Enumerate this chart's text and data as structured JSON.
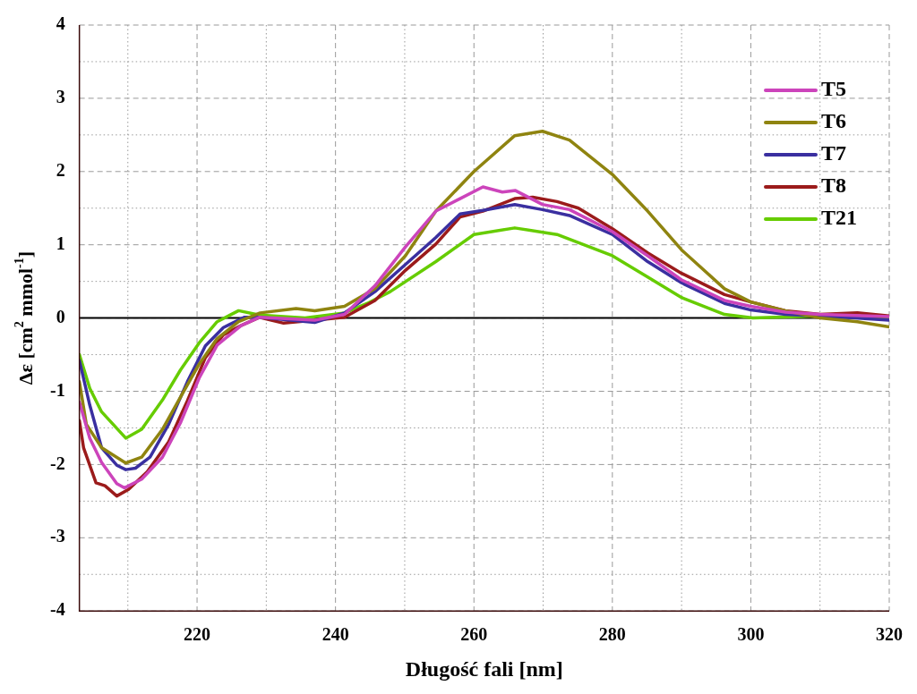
{
  "chart_data": {
    "type": "line",
    "xlabel": "Długość fali [nm]",
    "ylabel": "Δε [cm$^{2}$ mmol$^{-1}$]",
    "xlim": [
      203,
      320
    ],
    "ylim": [
      -4,
      4
    ],
    "xticks": [
      {
        "value": 210,
        "label": null
      },
      220,
      {
        "value": 230,
        "label": null
      },
      240,
      {
        "value": 250,
        "label": null
      },
      260,
      {
        "value": 270,
        "label": null
      },
      280,
      {
        "value": 290,
        "label": null
      },
      300,
      {
        "value": 310,
        "label": null
      },
      320
    ],
    "yticks": [
      -4,
      {
        "value": -3.5,
        "label": null
      },
      -3,
      {
        "value": -2.5,
        "label": null
      },
      -2,
      {
        "value": -1.5,
        "label": null
      },
      -1,
      {
        "value": -0.5,
        "label": null
      },
      0,
      {
        "value": 0.5,
        "label": null
      },
      1,
      {
        "value": 1.5,
        "label": null
      },
      2,
      {
        "value": 2.5,
        "label": null
      },
      3,
      {
        "value": 3.5,
        "label": null
      },
      4
    ],
    "grid": true,
    "legend": "top right",
    "marker": "none",
    "line_style": "solid",
    "ref_lines": [
      {
        "axis": "y",
        "value": 0,
        "color": "#000000"
      }
    ],
    "series": [
      {
        "name": "T5",
        "color": "#cc44bb",
        "x": [
          203,
          204.5,
          206.2,
          208.4,
          209.5,
          212,
          215,
          217.6,
          220.3,
          222.9,
          226.4,
          229,
          237,
          241.3,
          245.7,
          250.1,
          254.5,
          258,
          261.3,
          264.1,
          266,
          269.9,
          273.8,
          280,
          285.1,
          290,
          296.2,
          300,
          305,
          310,
          320
        ],
        "values": [
          -1.15,
          -1.64,
          -1.97,
          -2.26,
          -2.32,
          -2.2,
          -1.9,
          -1.43,
          -0.82,
          -0.37,
          -0.1,
          0.01,
          -0.03,
          0.05,
          0.44,
          0.97,
          1.46,
          1.63,
          1.79,
          1.72,
          1.74,
          1.55,
          1.48,
          1.18,
          0.85,
          0.52,
          0.24,
          0.16,
          0.08,
          0.05,
          0.02
        ]
      },
      {
        "name": "T6",
        "color": "#8f8410",
        "x": [
          203,
          204,
          206.2,
          209.7,
          212,
          215,
          217.6,
          220.3,
          222.9,
          226,
          229.1,
          234.3,
          237,
          241.3,
          245.7,
          250.1,
          254.5,
          260,
          265.9,
          269.9,
          273.8,
          280,
          285.1,
          290,
          296.2,
          300,
          304.9,
          310,
          315.4,
          320
        ],
        "values": [
          -0.87,
          -1.45,
          -1.77,
          -1.98,
          -1.9,
          -1.52,
          -1.08,
          -0.63,
          -0.28,
          -0.05,
          0.07,
          0.13,
          0.1,
          0.16,
          0.4,
          0.85,
          1.46,
          2.0,
          2.49,
          2.55,
          2.43,
          1.96,
          1.46,
          0.93,
          0.4,
          0.22,
          0.1,
          0,
          -0.05,
          -0.12
        ]
      },
      {
        "name": "T7",
        "color": "#3a2fa0",
        "x": [
          203,
          204.5,
          206.2,
          208.4,
          209.7,
          211.1,
          213.2,
          215.9,
          218.6,
          221.2,
          223.8,
          226.8,
          229,
          237,
          241.3,
          245.7,
          250.1,
          254.5,
          258,
          261.3,
          265.9,
          269.9,
          273.8,
          280,
          285.1,
          290,
          296.2,
          300,
          305,
          310,
          315,
          320
        ],
        "values": [
          -0.58,
          -1.19,
          -1.77,
          -2.01,
          -2.07,
          -2.05,
          -1.9,
          -1.45,
          -0.87,
          -0.38,
          -0.13,
          0.01,
          0.01,
          -0.06,
          0.07,
          0.36,
          0.73,
          1.1,
          1.42,
          1.47,
          1.55,
          1.48,
          1.4,
          1.14,
          0.77,
          0.48,
          0.2,
          0.11,
          0.05,
          0.03,
          0,
          -0.03
        ]
      },
      {
        "name": "T8",
        "color": "#9b1b1b",
        "x": [
          203,
          203.6,
          205.4,
          206.7,
          208.4,
          210.1,
          212.8,
          215.9,
          218.6,
          221.2,
          223.8,
          226.4,
          229,
          232.5,
          237,
          241.3,
          245.7,
          250.1,
          254.5,
          258,
          261.3,
          265.9,
          268.5,
          272,
          275.1,
          280,
          285.1,
          290,
          296.2,
          300,
          305,
          310,
          315.4,
          320
        ],
        "values": [
          -1.4,
          -1.77,
          -2.25,
          -2.29,
          -2.43,
          -2.34,
          -2.1,
          -1.69,
          -1.13,
          -0.54,
          -0.23,
          -0.1,
          0.01,
          -0.07,
          -0.03,
          0.01,
          0.24,
          0.65,
          1.01,
          1.38,
          1.46,
          1.63,
          1.65,
          1.59,
          1.5,
          1.22,
          0.89,
          0.61,
          0.32,
          0.22,
          0.1,
          0.05,
          0.07,
          0.03
        ]
      },
      {
        "name": "T21",
        "color": "#66cc00",
        "x": [
          203,
          204.5,
          206.2,
          209.7,
          212,
          215,
          217.6,
          220.3,
          222.9,
          226,
          229,
          235.6,
          241.3,
          244.6,
          247.9,
          254.5,
          260,
          265.9,
          272,
          280,
          285.1,
          290,
          296.2,
          300.3,
          310,
          320
        ],
        "values": [
          -0.5,
          -0.96,
          -1.28,
          -1.64,
          -1.52,
          -1.12,
          -0.71,
          -0.34,
          -0.05,
          0.1,
          0.04,
          0,
          0.07,
          0.2,
          0.36,
          0.77,
          1.14,
          1.23,
          1.14,
          0.85,
          0.56,
          0.28,
          0.05,
          0,
          0.03,
          0.02
        ]
      }
    ]
  }
}
